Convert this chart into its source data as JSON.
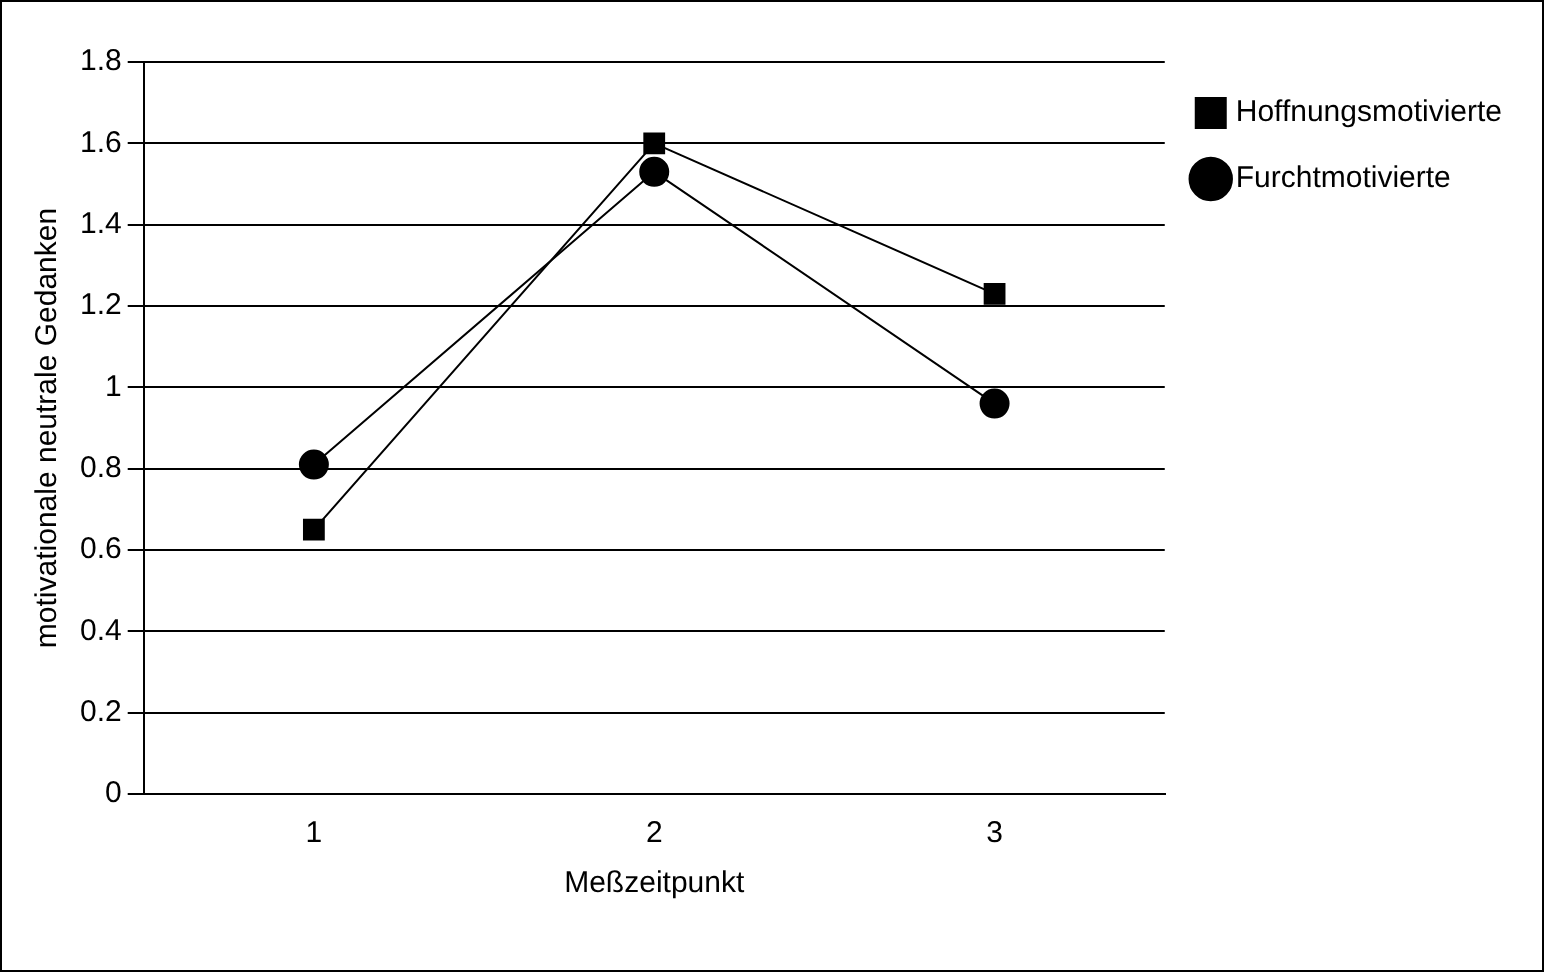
{
  "chart_data": {
    "type": "line",
    "xlabel": "Meßzeitpunkt",
    "ylabel": "motivationale neutrale Gedanken",
    "categories": [
      "1",
      "2",
      "3"
    ],
    "series": [
      {
        "name": "Hoffnungsmotivierte",
        "color": "#000000",
        "values": [
          0.65,
          1.6,
          1.23
        ],
        "marker": "square"
      },
      {
        "name": "Furchtmotivierte",
        "color": "#000000",
        "values": [
          0.81,
          1.53,
          0.96
        ],
        "marker": "circle"
      }
    ],
    "ylim": [
      0,
      1.8
    ],
    "yticks": [
      0,
      0.2,
      0.4,
      0.6,
      0.8,
      1,
      1.2,
      1.4,
      1.6,
      1.8
    ],
    "grid": "y",
    "legend": "right"
  }
}
